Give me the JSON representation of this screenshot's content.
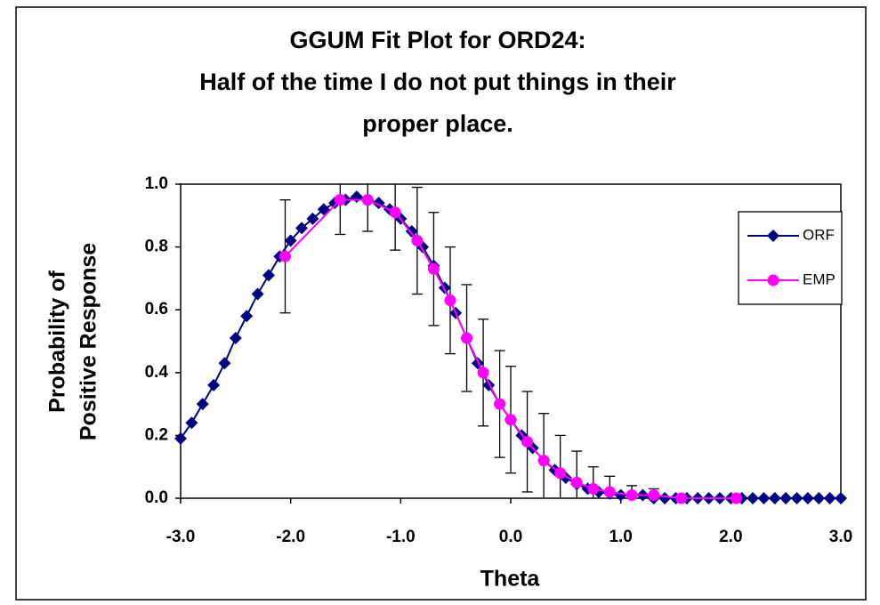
{
  "chart_data": {
    "type": "line",
    "title": [
      "GGUM Fit Plot for ORD24:",
      "Half of the time I do not put things in their",
      "proper place."
    ],
    "xlabel": "Theta",
    "ylabel": [
      "Probability of",
      "Positive Response"
    ],
    "xlim": [
      -3,
      3
    ],
    "xticks": [
      {
        "value": -3,
        "label": "-3.0"
      },
      {
        "value": -2,
        "label": "-2.0"
      },
      {
        "value": -1,
        "label": "-1.0"
      },
      {
        "value": 0,
        "label": "0.0"
      },
      {
        "value": 1,
        "label": "1.0"
      },
      {
        "value": 2,
        "label": "2.0"
      },
      {
        "value": 3,
        "label": "3.0"
      }
    ],
    "ylim": [
      0,
      1
    ],
    "yticks": [
      {
        "value": 0,
        "label": "0.0"
      },
      {
        "value": 0.2,
        "label": "0.2"
      },
      {
        "value": 0.4,
        "label": "0.4"
      },
      {
        "value": 0.6,
        "label": "0.6"
      },
      {
        "value": 0.8,
        "label": "0.8"
      },
      {
        "value": 1,
        "label": "1.0"
      }
    ],
    "legend": "right",
    "series": [
      {
        "name": "ORF",
        "color": "#000080",
        "marker": "diamond",
        "x": [
          -3,
          -2.9,
          -2.8,
          -2.7,
          -2.6,
          -2.5,
          -2.4,
          -2.3,
          -2.2,
          -2.1,
          -2,
          -1.9,
          -1.8,
          -1.7,
          -1.6,
          -1.5,
          -1.4,
          -1.3,
          -1.2,
          -1.1,
          -1,
          -0.9,
          -0.8,
          -0.7,
          -0.6,
          -0.5,
          -0.4,
          -0.3,
          -0.2,
          -0.1,
          0,
          0.1,
          0.2,
          0.3,
          0.4,
          0.5,
          0.6,
          0.7,
          0.8,
          0.9,
          1,
          1.1,
          1.2,
          1.3,
          1.4,
          1.5,
          1.6,
          1.7,
          1.8,
          1.9,
          2,
          2.1,
          2.2,
          2.3,
          2.4,
          2.5,
          2.6,
          2.7,
          2.8,
          2.9,
          3
        ],
        "values": [
          0.19,
          0.24,
          0.3,
          0.36,
          0.43,
          0.51,
          0.58,
          0.65,
          0.71,
          0.77,
          0.82,
          0.86,
          0.89,
          0.92,
          0.94,
          0.95,
          0.96,
          0.95,
          0.94,
          0.92,
          0.89,
          0.85,
          0.8,
          0.74,
          0.67,
          0.59,
          0.51,
          0.43,
          0.36,
          0.3,
          0.25,
          0.2,
          0.16,
          0.12,
          0.09,
          0.065,
          0.045,
          0.03,
          0.02,
          0.015,
          0.01,
          0.01,
          0.01,
          0,
          0,
          0,
          0,
          0,
          0,
          0,
          0,
          0,
          0,
          0,
          0,
          0,
          0,
          0,
          0,
          0,
          0
        ]
      },
      {
        "name": "EMP",
        "color": "#ff00ff",
        "marker": "circle",
        "x": [
          -2.05,
          -1.55,
          -1.3,
          -1.05,
          -0.85,
          -0.7,
          -0.55,
          -0.4,
          -0.25,
          -0.1,
          0,
          0.15,
          0.3,
          0.45,
          0.6,
          0.75,
          0.9,
          1.1,
          1.3,
          1.55,
          2.05
        ],
        "values": [
          0.77,
          0.95,
          0.95,
          0.91,
          0.82,
          0.73,
          0.63,
          0.51,
          0.4,
          0.3,
          0.25,
          0.18,
          0.12,
          0.08,
          0.05,
          0.03,
          0.02,
          0.01,
          0.01,
          0,
          0
        ],
        "errors": [
          0.18,
          0.11,
          0.1,
          0.12,
          0.17,
          0.18,
          0.17,
          0.17,
          0.17,
          0.17,
          0.17,
          0.16,
          0.15,
          0.12,
          0.1,
          0.07,
          0.05,
          0.03,
          0.02,
          0.01,
          0.005
        ]
      }
    ]
  }
}
